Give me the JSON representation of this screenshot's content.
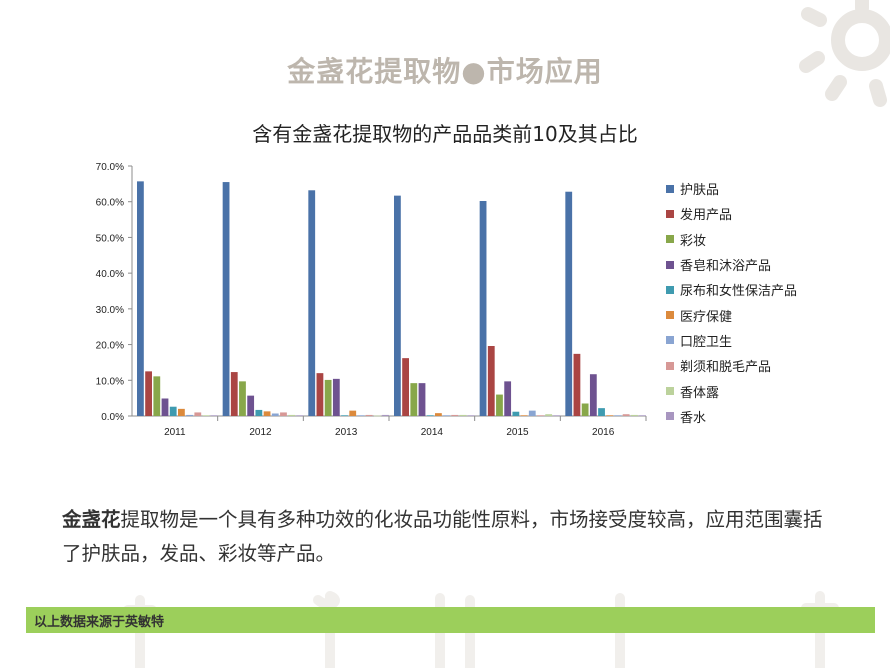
{
  "slide": {
    "title": "金盏花提取物●市场应用",
    "body_bold": "金盏花",
    "body_rest": "提取物是一个具有多种功效的化妆品功能性原料，市场接受度较高，应用范围囊括了护肤品，发品、彩妆等产品。",
    "footer": "以上数据来源于英敏特",
    "accent_color": "#9ccf5b"
  },
  "chart_data": {
    "type": "bar",
    "title": "含有金盏花提取物的产品品类前10及其占比",
    "categories": [
      "2011",
      "2012",
      "2013",
      "2014",
      "2015",
      "2016"
    ],
    "ylim": [
      0,
      70
    ],
    "yticks": [
      "0.0%",
      "10.0%",
      "20.0%",
      "30.0%",
      "40.0%",
      "50.0%",
      "60.0%",
      "70.0%"
    ],
    "grid": false,
    "legend_position": "right",
    "series": [
      {
        "name": "护肤品",
        "color": "#4a72a8",
        "values": [
          65.7,
          65.5,
          63.2,
          61.7,
          60.2,
          62.8
        ]
      },
      {
        "name": "发用产品",
        "color": "#aa4543",
        "values": [
          12.5,
          12.3,
          12.0,
          16.2,
          19.6,
          17.4
        ]
      },
      {
        "name": "彩妆",
        "color": "#88a74a",
        "values": [
          11.1,
          9.7,
          10.1,
          9.2,
          6.0,
          3.5
        ]
      },
      {
        "name": "香皂和沐浴产品",
        "color": "#6e5290",
        "values": [
          4.9,
          5.7,
          10.4,
          9.2,
          9.7,
          11.7
        ]
      },
      {
        "name": "尿布和女性保洁产品",
        "color": "#3f9bb0",
        "values": [
          2.6,
          1.7,
          0.2,
          0.2,
          1.2,
          2.2
        ]
      },
      {
        "name": "医疗保健",
        "color": "#dc8a3c",
        "values": [
          2.0,
          1.3,
          1.5,
          0.8,
          0.2,
          0.2
        ]
      },
      {
        "name": "口腔卫生",
        "color": "#8aa5d2",
        "values": [
          0.3,
          0.7,
          0.2,
          0.2,
          1.5,
          0.2
        ]
      },
      {
        "name": "剃须和脱毛产品",
        "color": "#d79896",
        "values": [
          1.0,
          1.0,
          0.3,
          0.3,
          0.2,
          0.5
        ]
      },
      {
        "name": "香体露",
        "color": "#bcd29c",
        "values": [
          0.2,
          0.3,
          0.1,
          0.3,
          0.5,
          0.3
        ]
      },
      {
        "name": "香水",
        "color": "#a896c0",
        "values": [
          0.2,
          0.2,
          0.3,
          0.2,
          0.2,
          0.2
        ]
      }
    ]
  }
}
